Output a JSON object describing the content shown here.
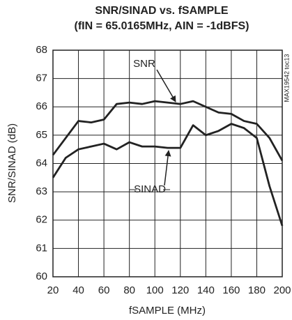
{
  "chart_data": {
    "type": "line",
    "title": "SNR/SINAD vs. fSAMPLE",
    "subtitle": "(fIN = 65.0165MHz, AIN = -1dBFS)",
    "x_label": "fSAMPLE (MHz)",
    "y_label": "SNR/SINAD (dB)",
    "side_note": "MAX19542 toc13",
    "x": [
      20,
      30,
      40,
      50,
      60,
      70,
      80,
      90,
      100,
      110,
      120,
      130,
      140,
      150,
      160,
      170,
      180,
      190,
      200
    ],
    "series": [
      {
        "name": "SNR",
        "color": "#222222",
        "values": [
          64.3,
          64.9,
          65.5,
          65.45,
          65.55,
          66.1,
          66.15,
          66.1,
          66.2,
          66.15,
          66.1,
          66.2,
          66.0,
          65.8,
          65.75,
          65.5,
          65.4,
          64.9,
          64.1
        ]
      },
      {
        "name": "SINAD",
        "color": "#222222",
        "values": [
          63.5,
          64.2,
          64.5,
          64.6,
          64.7,
          64.5,
          64.75,
          64.6,
          64.6,
          64.55,
          64.55,
          65.35,
          65.0,
          65.15,
          65.4,
          65.25,
          64.9,
          63.2,
          61.8
        ]
      }
    ],
    "xlim": [
      20,
      200
    ],
    "xticks": [
      20,
      40,
      60,
      80,
      100,
      120,
      140,
      160,
      180,
      200
    ],
    "ylim": [
      60,
      68
    ],
    "yticks": [
      60,
      61,
      62,
      63,
      64,
      65,
      66,
      67,
      68
    ],
    "grid": true
  }
}
